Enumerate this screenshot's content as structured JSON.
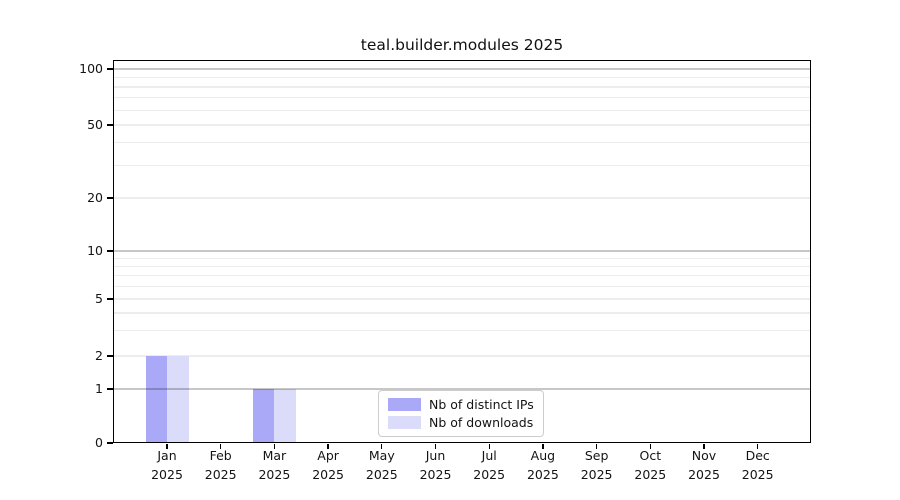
{
  "chart_data": {
    "type": "bar",
    "title": "teal.builder.modules 2025",
    "year_label": "2025",
    "months": [
      "Jan",
      "Feb",
      "Mar",
      "Apr",
      "May",
      "Jun",
      "Jul",
      "Aug",
      "Sep",
      "Oct",
      "Nov",
      "Dec"
    ],
    "categories": [
      "Jan 2025",
      "Feb 2025",
      "Mar 2025",
      "Apr 2025",
      "May 2025",
      "Jun 2025",
      "Jul 2025",
      "Aug 2025",
      "Sep 2025",
      "Oct 2025",
      "Nov 2025",
      "Dec 2025"
    ],
    "series": [
      {
        "key": "distinct-ips",
        "name": "Nb of distinct IPs",
        "color": "#a9a9f7",
        "values": [
          2,
          0,
          1,
          0,
          0,
          0,
          0,
          0,
          0,
          0,
          0,
          0
        ]
      },
      {
        "key": "downloads",
        "name": "Nb of downloads",
        "color": "#dbdbfa",
        "values": [
          2,
          0,
          1,
          0,
          0,
          0,
          0,
          0,
          0,
          0,
          0,
          0
        ]
      }
    ],
    "y_axis": {
      "scale": "symlog (linear 0-1, logarithmic 1-100)",
      "range": [
        0,
        100
      ],
      "ticks": [
        0,
        1,
        2,
        5,
        10,
        20,
        50,
        100
      ],
      "decade_ticks": [
        1,
        10,
        100
      ],
      "minor_ticks": [
        3,
        4,
        6,
        7,
        8,
        9,
        30,
        40,
        60,
        70,
        80,
        90
      ]
    },
    "x_axis": {
      "label_lines": 2
    },
    "legend": {
      "position": "lower center"
    },
    "grid": "horizontal",
    "background_color": "#ffffff"
  }
}
